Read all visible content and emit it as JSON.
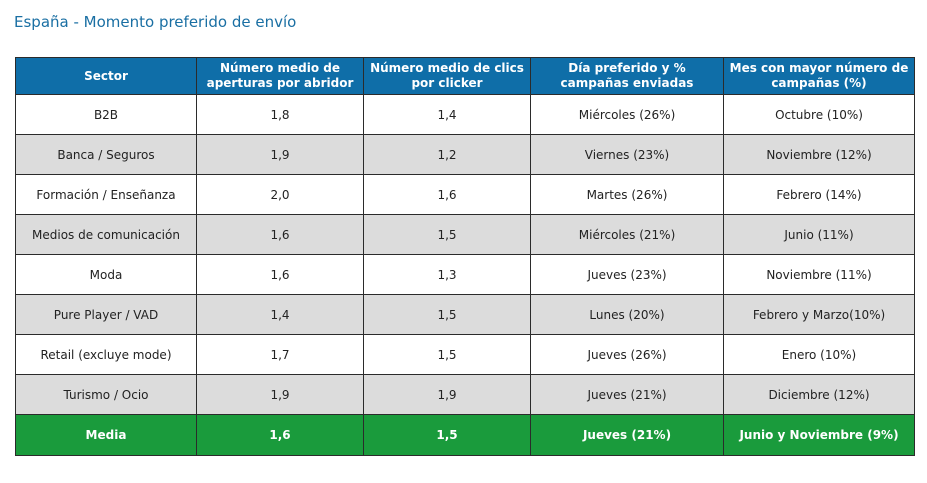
{
  "title": "España - Momento preferido de envío",
  "table": {
    "headers": [
      "Sector",
      "Número medio de aperturas por abridor",
      "Número medio de clics por clicker",
      "Día preferido y % campañas enviadas",
      "Mes con mayor número de campañas (%)"
    ],
    "rows": [
      [
        "B2B",
        "1,8",
        "1,4",
        "Miércoles (26%)",
        "Octubre (10%)"
      ],
      [
        "Banca / Seguros",
        "1,9",
        "1,2",
        "Viernes (23%)",
        "Noviembre (12%)"
      ],
      [
        "Formación / Enseñanza",
        "2,0",
        "1,6",
        "Martes (26%)",
        "Febrero (14%)"
      ],
      [
        "Medios de comunicación",
        "1,6",
        "1,5",
        "Miércoles (21%)",
        "Junio (11%)"
      ],
      [
        "Moda",
        "1,6",
        "1,3",
        "Jueves (23%)",
        "Noviembre (11%)"
      ],
      [
        "Pure Player / VAD",
        "1,4",
        "1,5",
        "Lunes (20%)",
        "Febrero y Marzo(10%)"
      ],
      [
        "Retail (excluye mode)",
        "1,7",
        "1,5",
        "Jueves (26%)",
        "Enero (10%)"
      ],
      [
        "Turismo / Ocio",
        "1,9",
        "1,9",
        "Jueves (21%)",
        "Diciembre (12%)"
      ]
    ],
    "footer": [
      "Media",
      "1,6",
      "1,5",
      "Jueves (21%)",
      "Junio y Noviembre (9%)"
    ]
  },
  "colors": {
    "title": "#1a6fa3",
    "header_bg": "#0f6ea8",
    "stripe_bg": "#dcdcdc",
    "footer_bg": "#1a9b3c"
  }
}
